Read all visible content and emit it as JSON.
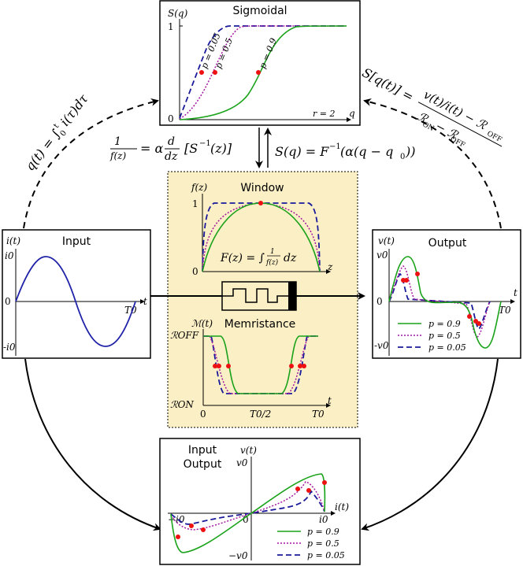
{
  "colors": {
    "green": "#1aa31a",
    "purple": "#a2179f",
    "navy": "#1a1a9a",
    "red": "#ee1111",
    "input_curve": "#1f22a8",
    "memristor_panel_bg": "#fbefc6"
  },
  "sigmoidal": {
    "title": "Sigmoidal",
    "ylabel": "S(q)",
    "xlabel": "q",
    "tick_y1": "1",
    "tick_y0": "0",
    "r_label": "r = 2",
    "curve_labels": [
      "p = 0.05",
      "p = 0.5",
      "p = 0.9"
    ]
  },
  "window": {
    "title": "Window",
    "ylabel": "f(z)",
    "xlabel": "z",
    "tick_y1": "1",
    "tick_y0": "0",
    "integral_label": "F(z) = ∫ 1/f(z) dz"
  },
  "memristance": {
    "title": "Memristance",
    "ylabel": "ℳ(t)",
    "xlabel": "t",
    "tick_roff": "ℛOFF",
    "tick_ron": "ℛON",
    "tick_x0": "0",
    "tick_xmid": "T0/2",
    "tick_xend": "T0"
  },
  "input": {
    "title": "Input",
    "ylabel": "i(t)",
    "xlabel": "t",
    "tick_top": "i0",
    "tick_zero": "0",
    "tick_bottom": "-i0",
    "tick_T0": "T0"
  },
  "output": {
    "title": "Output",
    "ylabel": "v(t)",
    "xlabel": "t",
    "tick_top": "v0",
    "tick_zero": "0",
    "tick_bottom": "-v0",
    "tick_T0": "T0",
    "legend": [
      "p = 0.9",
      "p = 0.5",
      "p = 0.05"
    ]
  },
  "io": {
    "title_line1": "Input",
    "title_line2": "Output",
    "ylabel": "v(t)",
    "xlabel": "i(t)",
    "tick_top": "v0",
    "tick_bottom": "−v0",
    "tick_left": "−i0",
    "tick_right": "i0",
    "tick_zero": "0",
    "legend": [
      "p = 0.9",
      "p = 0.5",
      "p = 0.05"
    ]
  },
  "equations": {
    "charge": "q(t) = ∫0t i(τ)dτ",
    "inverse_window": "1/f(z) = α d/dz [S−1(z)]",
    "sigmoid_def": "S(q) = F−1(α(q − q0))",
    "state": "S[q(t)] = (v(t)/i(t) − ℛOFF) / (ℛON − ℛOFF)"
  }
}
